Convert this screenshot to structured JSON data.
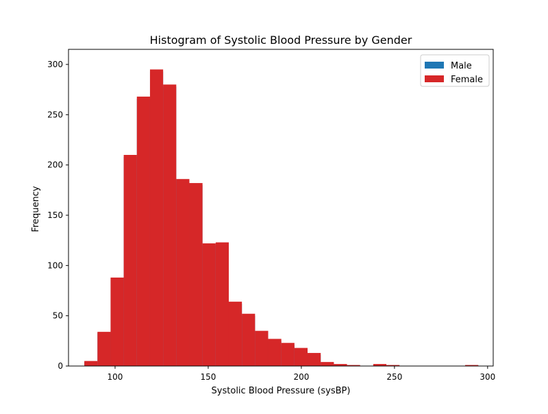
{
  "chart_data": {
    "type": "bar",
    "title": "Histogram of Systolic Blood Pressure by Gender",
    "xlabel": "Systolic Blood Pressure (sysBP)",
    "ylabel": "Frequency",
    "xlim": [
      75,
      303
    ],
    "ylim": [
      0,
      315
    ],
    "xticks": [
      100,
      150,
      200,
      250,
      300
    ],
    "yticks": [
      0,
      50,
      100,
      150,
      200,
      250,
      300
    ],
    "bin_edges": [
      83.5,
      90.55,
      97.6,
      104.65,
      111.7,
      118.75,
      125.8,
      132.85,
      139.9,
      146.95,
      154.0,
      161.05,
      168.1,
      175.15,
      182.2,
      189.25,
      196.3,
      203.35,
      210.4,
      217.45,
      224.5,
      231.55,
      238.6,
      245.65,
      252.7,
      259.75,
      266.8,
      273.85,
      280.9,
      287.95,
      295.0
    ],
    "legend_position": "top-right",
    "series": [
      {
        "name": "Male",
        "color": "#1f77b4",
        "values": [
          4,
          33,
          86,
          208,
          266,
          293,
          278,
          184,
          180,
          120,
          121,
          62,
          50,
          33,
          25,
          21,
          16,
          11,
          3,
          1,
          0,
          0,
          1,
          0,
          0,
          0,
          0,
          0,
          0,
          1
        ]
      },
      {
        "name": "Female",
        "color": "#d62728",
        "values": [
          5,
          34,
          88,
          210,
          268,
          295,
          280,
          186,
          182,
          122,
          123,
          64,
          52,
          35,
          27,
          23,
          18,
          13,
          4,
          2,
          1,
          0,
          2,
          1,
          0,
          0,
          0,
          0,
          0,
          1
        ]
      }
    ]
  }
}
